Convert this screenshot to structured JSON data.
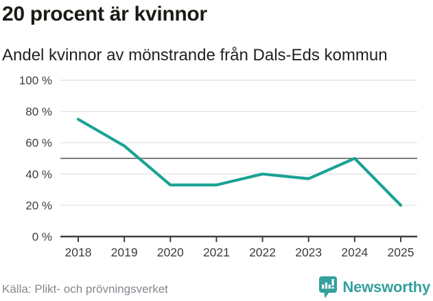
{
  "header": {
    "title": "20 procent är kvinnor",
    "subtitle": "Andel kvinnor av mönstrande från Dals-Eds kommun"
  },
  "chart_data": {
    "type": "line",
    "title": "20 procent är kvinnor",
    "subtitle": "Andel kvinnor av mönstrande från Dals-Eds kommun",
    "x": [
      "2018",
      "2019",
      "2020",
      "2021",
      "2022",
      "2023",
      "2024",
      "2025"
    ],
    "series": [
      {
        "name": "Andel kvinnor av mönstrande (%)",
        "values": [
          75,
          58,
          33,
          33,
          40,
          37,
          50,
          20
        ]
      }
    ],
    "ylim": [
      0,
      100
    ],
    "yticks": [
      0,
      20,
      40,
      60,
      80,
      100
    ],
    "ytick_labels": [
      "0 %",
      "20 %",
      "40 %",
      "60 %",
      "80 %",
      "100 %"
    ],
    "reference_line": 50,
    "grid": true,
    "legend": "none",
    "unit": "%"
  },
  "footer": {
    "source": "Källa: Plikt- och prövningsverket",
    "brand": "Newsworthy"
  },
  "colors": {
    "accent": "#1aa294",
    "brand": "#35a09d",
    "grid": "#e4e4e4",
    "reference": "#7d7d7d",
    "axis": "#3f3f3f",
    "tick_label": "#3d3d3d"
  }
}
